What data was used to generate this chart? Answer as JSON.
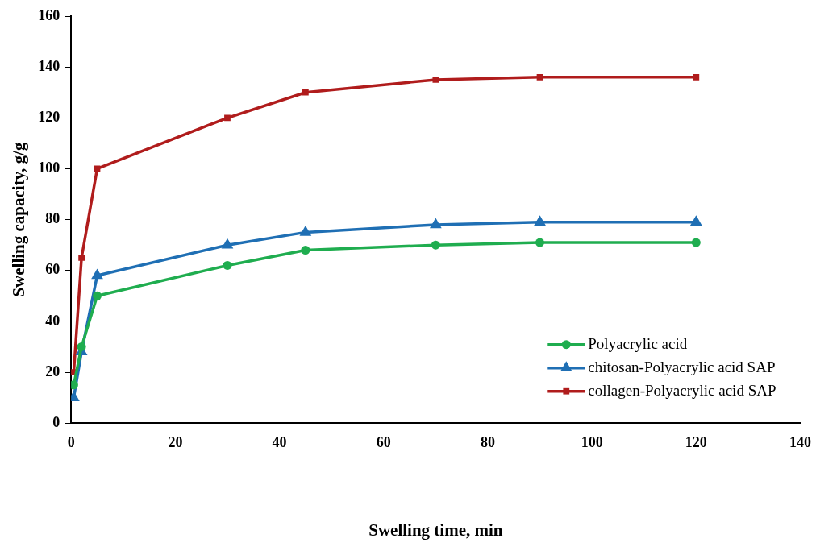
{
  "chart_data": {
    "type": "line",
    "xlabel": "Swelling time, min",
    "ylabel": "Swelling capacity, g/g",
    "x": [
      0.5,
      2,
      5,
      30,
      45,
      70,
      90,
      120
    ],
    "xlim": [
      0,
      140
    ],
    "xticks": [
      0,
      20,
      40,
      60,
      80,
      100,
      120,
      140
    ],
    "ylim": [
      0,
      160
    ],
    "yticks": [
      0,
      20,
      40,
      60,
      80,
      100,
      120,
      140,
      160
    ],
    "grid": false,
    "legend": "bottom right",
    "line_style": "solid",
    "series": [
      {
        "name": "Polyacrylic acid",
        "color": "#1fad4f",
        "marker": "circle",
        "values": [
          15,
          30,
          50,
          62,
          68,
          70,
          71,
          71
        ]
      },
      {
        "name": "chitosan-Polyacrylic acid SAP",
        "color": "#1f6fb4",
        "marker": "triangle",
        "values": [
          10,
          28,
          58,
          70,
          75,
          78,
          79,
          79
        ]
      },
      {
        "name": "collagen-Polyacrylic acid SAP",
        "color": "#b01c1c",
        "marker": "square",
        "values": [
          20,
          65,
          100,
          120,
          130,
          135,
          136,
          136
        ]
      }
    ]
  }
}
